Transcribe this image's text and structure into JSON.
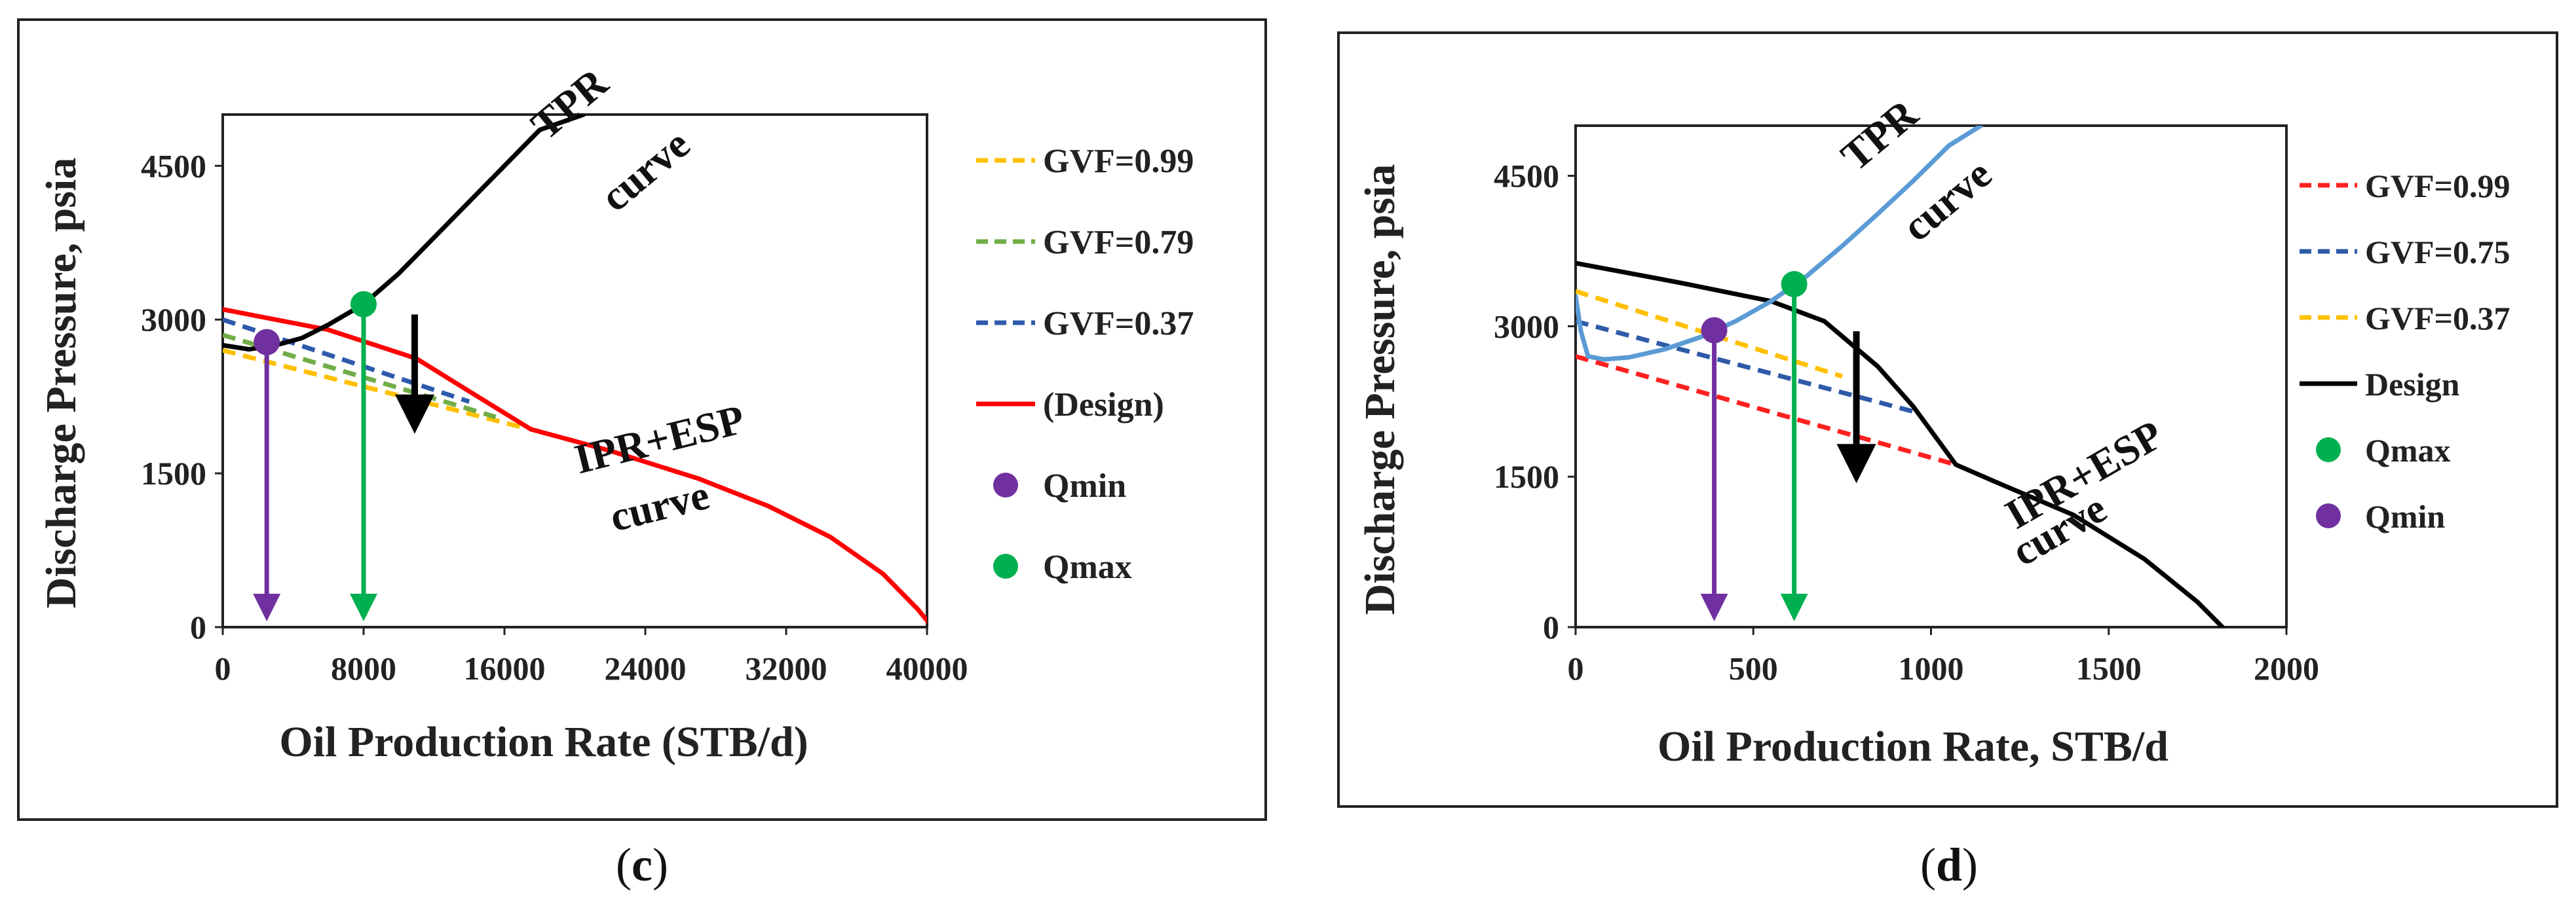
{
  "chart_data": [
    {
      "id": "c",
      "type": "line",
      "caption_letter": "c",
      "xlabel": "Oil Production Rate (STB/d)",
      "ylabel": "Discharge Pressure, psia",
      "xlim": [
        0,
        40000
      ],
      "ylim": [
        0,
        5000
      ],
      "xticks": [
        0,
        8000,
        16000,
        24000,
        32000,
        40000
      ],
      "yticks": [
        0,
        1500,
        3000,
        4500
      ],
      "annotations": [
        {
          "text": "TPR",
          "x": 20200,
          "y": 5000,
          "rotate": -40
        },
        {
          "text": "curve",
          "x": 24500,
          "y": 4350,
          "rotate": -40
        },
        {
          "text": "IPR+ESP",
          "x": 25000,
          "y": 1700,
          "rotate": -14
        },
        {
          "text": "curve",
          "x": 25000,
          "y": 1050,
          "rotate": -14
        }
      ],
      "arrow": {
        "x": 10900,
        "y_from": 3050,
        "y_to": 1950,
        "color": "#000000"
      },
      "drop_lines": [
        {
          "name": "Qmin",
          "x": 2500,
          "y": 2780,
          "color": "#7030a0"
        },
        {
          "name": "Qmax",
          "x": 8000,
          "y": 3150,
          "color": "#00b050"
        }
      ],
      "series": [
        {
          "name": "GVF=0.99",
          "style": "dashed",
          "color": "#ffc000",
          "x": [
            0,
            17000
          ],
          "y": [
            2700,
            1950
          ]
        },
        {
          "name": "GVF=0.79",
          "style": "dashed",
          "color": "#70ad47",
          "x": [
            0,
            15500
          ],
          "y": [
            2850,
            2050
          ]
        },
        {
          "name": "GVF=0.37",
          "style": "dashed",
          "color": "#2e5aac",
          "x": [
            0,
            14000
          ],
          "y": [
            3000,
            2200
          ]
        },
        {
          "name": "(Design)",
          "style": "solid",
          "color": "#ff0000",
          "x": [
            0,
            6000,
            11000,
            14000,
            17500,
            22000,
            27000,
            31000,
            34500,
            37500,
            39500,
            40300
          ],
          "y": [
            3100,
            2900,
            2620,
            2300,
            1930,
            1720,
            1450,
            1180,
            880,
            520,
            170,
            0
          ]
        },
        {
          "name": "TPR",
          "style": "solid",
          "color": "#000000",
          "in_legend": false,
          "x": [
            0,
            1500,
            3000,
            4500,
            6000,
            8000,
            10000,
            12000,
            14000,
            16000,
            18000,
            20500
          ],
          "y": [
            2750,
            2710,
            2750,
            2820,
            2950,
            3150,
            3450,
            3800,
            4150,
            4500,
            4850,
            5000
          ]
        }
      ],
      "markers": [
        {
          "name": "Qmin",
          "x": 2500,
          "y": 2780,
          "color": "#7030a0"
        },
        {
          "name": "Qmax",
          "x": 8000,
          "y": 3150,
          "color": "#00b050"
        }
      ],
      "legend": [
        {
          "label": "GVF=0.99",
          "kind": "dashed",
          "color": "#ffc000"
        },
        {
          "label": "GVF=0.79",
          "kind": "dashed",
          "color": "#70ad47"
        },
        {
          "label": "GVF=0.37",
          "kind": "dashed",
          "color": "#2e5aac"
        },
        {
          "label": "(Design)",
          "kind": "solid",
          "color": "#ff0000"
        },
        {
          "label": "Qmin",
          "kind": "dot",
          "color": "#7030a0"
        },
        {
          "label": "Qmax",
          "kind": "dot",
          "color": "#00b050"
        }
      ]
    },
    {
      "id": "d",
      "type": "line",
      "caption_letter": "d",
      "xlabel": "Oil Production Rate, STB/d",
      "ylabel": "Discharge Pressure, psia",
      "xlim": [
        0,
        2000
      ],
      "ylim": [
        0,
        5000
      ],
      "xticks": [
        0,
        500,
        1000,
        1500,
        2000
      ],
      "yticks": [
        0,
        1500,
        3000,
        4500
      ],
      "annotations": [
        {
          "text": "TPR",
          "x": 880,
          "y": 4800,
          "rotate": -40
        },
        {
          "text": "curve",
          "x": 1070,
          "y": 4150,
          "rotate": -40
        },
        {
          "text": "IPR+ESP",
          "x": 1450,
          "y": 1400,
          "rotate": -30
        },
        {
          "text": "curve",
          "x": 1380,
          "y": 850,
          "rotate": -30
        }
      ],
      "arrow": {
        "x": 790,
        "y_from": 2950,
        "y_to": 1500,
        "color": "#000000"
      },
      "drop_lines": [
        {
          "name": "Qmin",
          "x": 390,
          "y": 2960,
          "color": "#7030a0"
        },
        {
          "name": "Qmax",
          "x": 615,
          "y": 3420,
          "color": "#00b050"
        }
      ],
      "series": [
        {
          "name": "GVF=0.99",
          "style": "dashed",
          "color": "#ff2020",
          "x": [
            0,
            1070
          ],
          "y": [
            2700,
            1620
          ]
        },
        {
          "name": "GVF=0.75",
          "style": "dashed",
          "color": "#2e5aa8",
          "x": [
            0,
            950
          ],
          "y": [
            3050,
            2150
          ]
        },
        {
          "name": "GVF=0.37",
          "style": "dashed",
          "color": "#ffc000",
          "x": [
            0,
            750
          ],
          "y": [
            3350,
            2500
          ]
        },
        {
          "name": "Design",
          "style": "solid",
          "color": "#000000",
          "x": [
            0,
            300,
            550,
            700,
            850,
            950,
            1070,
            1200,
            1400,
            1600,
            1750,
            1820
          ],
          "y": [
            3630,
            3430,
            3250,
            3050,
            2600,
            2200,
            1620,
            1420,
            1120,
            680,
            250,
            0
          ]
        },
        {
          "name": "TPR",
          "style": "solid",
          "color": "#5b9bd5",
          "in_legend": false,
          "x": [
            0,
            15,
            35,
            80,
            150,
            250,
            350,
            450,
            550,
            650,
            750,
            850,
            950,
            1050,
            1140
          ],
          "y": [
            3300,
            2950,
            2700,
            2670,
            2690,
            2770,
            2890,
            3050,
            3250,
            3500,
            3800,
            4120,
            4450,
            4800,
            5000
          ]
        }
      ],
      "markers": [
        {
          "name": "Qmax",
          "x": 615,
          "y": 3420,
          "color": "#00b050"
        },
        {
          "name": "Qmin",
          "x": 390,
          "y": 2960,
          "color": "#7030a0"
        }
      ],
      "legend": [
        {
          "label": "GVF=0.99",
          "kind": "dashed",
          "color": "#ff2020"
        },
        {
          "label": "GVF=0.75",
          "kind": "dashed",
          "color": "#2e5aa8"
        },
        {
          "label": "GVF=0.37",
          "kind": "dashed",
          "color": "#ffc000"
        },
        {
          "label": "Design",
          "kind": "solid",
          "color": "#000000"
        },
        {
          "label": "Qmax",
          "kind": "dot",
          "color": "#00b050"
        },
        {
          "label": "Qmin",
          "kind": "dot",
          "color": "#7030a0"
        }
      ]
    }
  ]
}
